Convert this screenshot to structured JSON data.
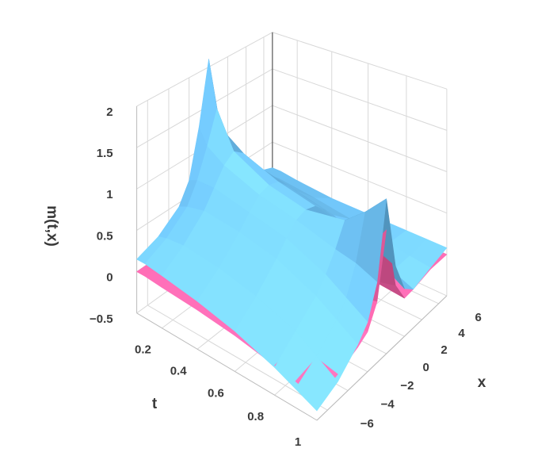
{
  "chart_data": {
    "type": "surface",
    "axes": {
      "t": {
        "title": "t",
        "lim": [
          0.05,
          1
        ],
        "ticks": [
          0.2,
          0.4,
          0.6,
          0.8,
          1
        ]
      },
      "x": {
        "title": "x",
        "lim": [
          -7,
          7
        ],
        "ticks": [
          {
            "value": -6,
            "label": "−6"
          },
          {
            "value": -4,
            "label": "−4"
          },
          {
            "value": -2,
            "label": "−2"
          },
          0,
          2,
          4,
          6
        ]
      },
      "z": {
        "title": "m(t,x)",
        "lim": [
          -0.5,
          2
        ],
        "ticks": [
          {
            "value": -0.5,
            "label": "−0.5"
          },
          0,
          0.5,
          1,
          1.5,
          2
        ]
      }
    },
    "t": [
      0.05,
      0.1,
      0.2,
      0.4,
      0.6,
      0.8,
      0.9,
      1
    ],
    "x": [
      -7,
      -5,
      -3,
      -2,
      -1,
      0,
      1,
      2,
      3,
      5,
      7
    ],
    "series": [
      {
        "color": "#62b8ec",
        "values": [
          [
            0.15,
            0.25,
            0.45,
            0.7,
            1.3,
            2.1,
            1.3,
            0.7,
            0.45,
            0.25,
            0.15
          ],
          [
            0.15,
            0.28,
            0.5,
            0.75,
            1.1,
            1.5,
            1.1,
            0.75,
            0.5,
            0.28,
            0.15
          ],
          [
            0.12,
            0.3,
            0.55,
            0.75,
            0.95,
            1.05,
            0.95,
            0.75,
            0.55,
            0.3,
            0.12
          ],
          [
            0.05,
            0.25,
            0.5,
            0.65,
            0.78,
            0.82,
            0.78,
            0.65,
            0.5,
            0.25,
            0.08
          ],
          [
            -0.05,
            0.15,
            0.4,
            0.55,
            0.68,
            0.72,
            0.68,
            0.55,
            0.4,
            0.18,
            0.08
          ],
          [
            -0.2,
            0,
            0.2,
            0.35,
            0.55,
            0.8,
            0.55,
            0.35,
            0.2,
            0.1,
            0.08
          ],
          [
            -0.3,
            -0.15,
            0.05,
            0.2,
            0.5,
            1.0,
            0.5,
            0.2,
            0.05,
            0.05,
            0.08
          ],
          [
            -0.4,
            -0.3,
            -0.1,
            0.05,
            0.4,
            1.25,
            0.4,
            0.05,
            -0.05,
            0.02,
            0.08
          ]
        ]
      },
      {
        "color": "#e8559a",
        "values": [
          [
            0,
            0,
            0,
            0,
            0,
            0,
            0,
            0,
            0,
            0,
            0
          ],
          [
            0,
            0,
            0,
            0,
            0,
            0.01,
            0,
            0,
            0,
            0,
            0
          ],
          [
            -0.02,
            -0.01,
            0,
            0,
            0.01,
            0.02,
            0.01,
            0,
            0,
            0,
            0
          ],
          [
            -0.05,
            -0.03,
            -0.01,
            0,
            0.02,
            0.05,
            0.02,
            0,
            0,
            0,
            0
          ],
          [
            -0.1,
            -0.07,
            -0.03,
            0,
            0.04,
            0.1,
            0.04,
            0,
            0,
            0,
            0
          ],
          [
            -0.18,
            -0.13,
            -0.07,
            -0.02,
            0.08,
            0.3,
            0.08,
            -0.02,
            -0.02,
            0,
            0
          ],
          [
            -0.22,
            -0.17,
            -0.1,
            -0.04,
            0.12,
            0.55,
            0.12,
            -0.04,
            -0.04,
            0,
            0
          ],
          [
            -0.28,
            -0.22,
            -0.13,
            -0.06,
            0.18,
            0.9,
            0.18,
            -0.06,
            -0.05,
            0,
            0
          ]
        ]
      }
    ]
  }
}
